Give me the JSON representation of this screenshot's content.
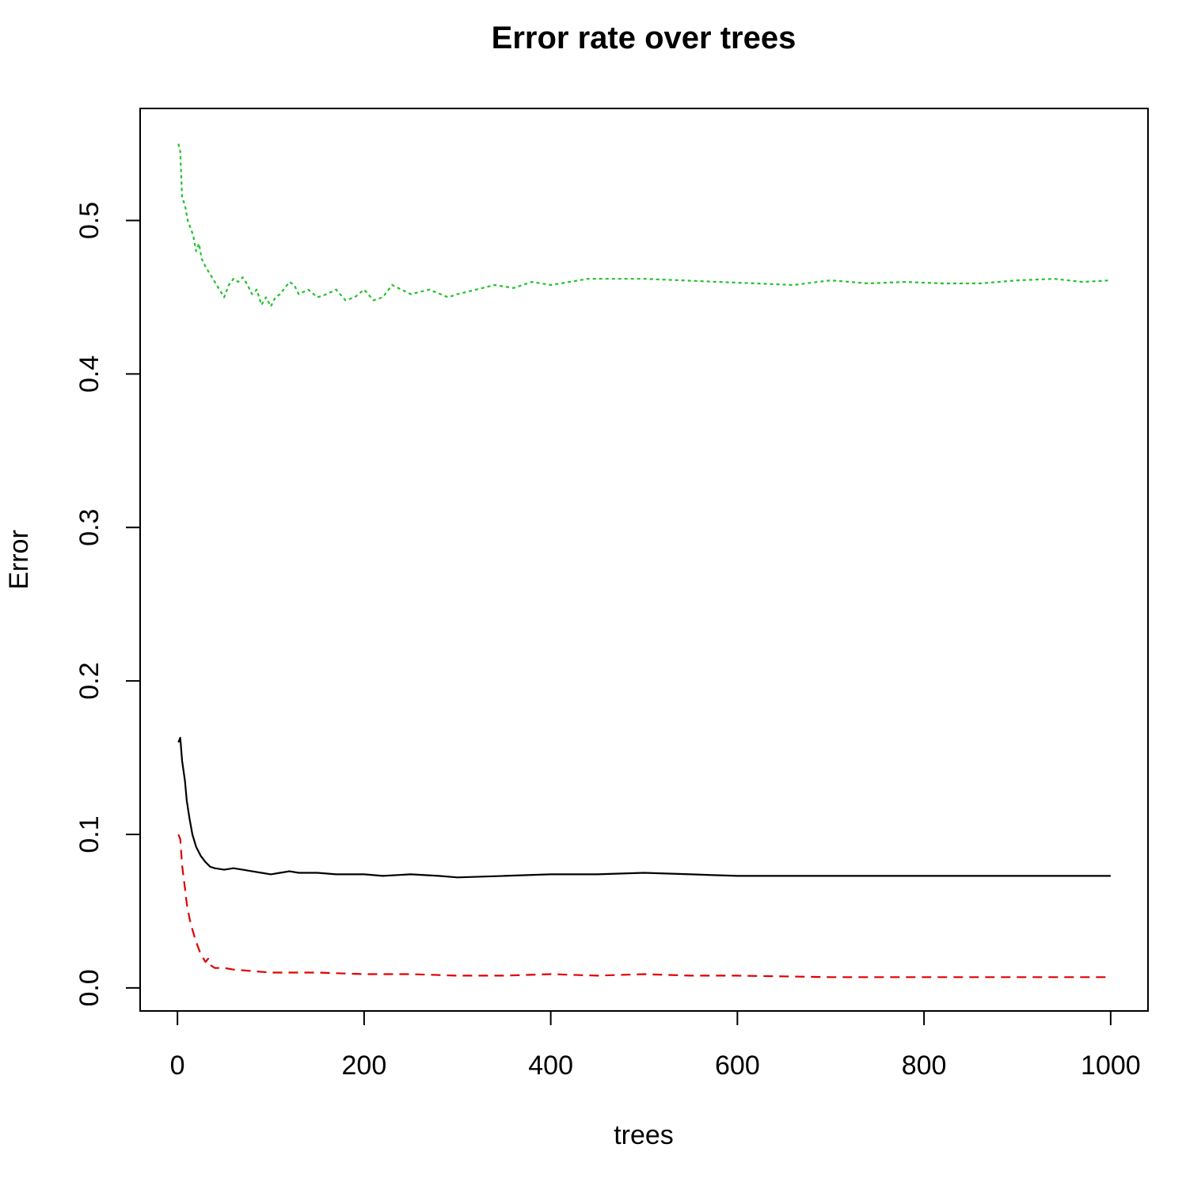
{
  "chart_data": {
    "type": "line",
    "title": "Error rate over trees",
    "xlabel": "trees",
    "ylabel": "Error",
    "xlim": [
      -40,
      1040
    ],
    "ylim": [
      -0.015,
      0.573
    ],
    "x_ticks": [
      0,
      200,
      400,
      600,
      800,
      1000
    ],
    "x_tick_labels": [
      "0",
      "200",
      "400",
      "600",
      "800",
      "1000"
    ],
    "y_ticks": [
      0.0,
      0.1,
      0.2,
      0.3,
      0.4,
      0.5
    ],
    "y_tick_labels": [
      "0.0",
      "0.1",
      "0.2",
      "0.3",
      "0.4",
      "0.5"
    ],
    "grid": false,
    "legend": "none",
    "series": [
      {
        "color": "#000000",
        "dash": "solid",
        "points": [
          [
            1,
            0.16
          ],
          [
            3,
            0.163
          ],
          [
            5,
            0.148
          ],
          [
            8,
            0.135
          ],
          [
            10,
            0.122
          ],
          [
            13,
            0.11
          ],
          [
            16,
            0.1
          ],
          [
            20,
            0.092
          ],
          [
            25,
            0.086
          ],
          [
            30,
            0.082
          ],
          [
            35,
            0.079
          ],
          [
            40,
            0.078
          ],
          [
            50,
            0.077
          ],
          [
            60,
            0.078
          ],
          [
            70,
            0.077
          ],
          [
            80,
            0.076
          ],
          [
            90,
            0.075
          ],
          [
            100,
            0.074
          ],
          [
            110,
            0.075
          ],
          [
            120,
            0.076
          ],
          [
            130,
            0.075
          ],
          [
            150,
            0.075
          ],
          [
            170,
            0.074
          ],
          [
            200,
            0.074
          ],
          [
            220,
            0.073
          ],
          [
            250,
            0.074
          ],
          [
            280,
            0.073
          ],
          [
            300,
            0.072
          ],
          [
            350,
            0.073
          ],
          [
            400,
            0.074
          ],
          [
            450,
            0.074
          ],
          [
            500,
            0.075
          ],
          [
            550,
            0.074
          ],
          [
            600,
            0.073
          ],
          [
            650,
            0.073
          ],
          [
            700,
            0.073
          ],
          [
            750,
            0.073
          ],
          [
            800,
            0.073
          ],
          [
            850,
            0.073
          ],
          [
            900,
            0.073
          ],
          [
            950,
            0.073
          ],
          [
            1000,
            0.073
          ]
        ]
      },
      {
        "color": "#df0000",
        "dash": "dashed",
        "points": [
          [
            1,
            0.1
          ],
          [
            3,
            0.097
          ],
          [
            5,
            0.08
          ],
          [
            8,
            0.065
          ],
          [
            10,
            0.055
          ],
          [
            13,
            0.045
          ],
          [
            16,
            0.038
          ],
          [
            20,
            0.03
          ],
          [
            25,
            0.022
          ],
          [
            30,
            0.017
          ],
          [
            33,
            0.019
          ],
          [
            35,
            0.015
          ],
          [
            40,
            0.013
          ],
          [
            50,
            0.013
          ],
          [
            60,
            0.012
          ],
          [
            80,
            0.011
          ],
          [
            100,
            0.01
          ],
          [
            150,
            0.01
          ],
          [
            200,
            0.009
          ],
          [
            250,
            0.009
          ],
          [
            300,
            0.008
          ],
          [
            350,
            0.008
          ],
          [
            400,
            0.009
          ],
          [
            450,
            0.008
          ],
          [
            500,
            0.009
          ],
          [
            550,
            0.008
          ],
          [
            600,
            0.008
          ],
          [
            700,
            0.007
          ],
          [
            800,
            0.007
          ],
          [
            900,
            0.007
          ],
          [
            1000,
            0.007
          ]
        ]
      },
      {
        "color": "#22c22c",
        "dash": "dotted",
        "points": [
          [
            1,
            0.55
          ],
          [
            3,
            0.545
          ],
          [
            5,
            0.515
          ],
          [
            8,
            0.51
          ],
          [
            11,
            0.5
          ],
          [
            14,
            0.495
          ],
          [
            17,
            0.49
          ],
          [
            20,
            0.48
          ],
          [
            23,
            0.485
          ],
          [
            26,
            0.475
          ],
          [
            30,
            0.47
          ],
          [
            35,
            0.465
          ],
          [
            40,
            0.46
          ],
          [
            45,
            0.455
          ],
          [
            50,
            0.45
          ],
          [
            55,
            0.458
          ],
          [
            60,
            0.462
          ],
          [
            65,
            0.46
          ],
          [
            70,
            0.463
          ],
          [
            75,
            0.458
          ],
          [
            80,
            0.452
          ],
          [
            85,
            0.455
          ],
          [
            90,
            0.445
          ],
          [
            95,
            0.45
          ],
          [
            100,
            0.444
          ],
          [
            105,
            0.45
          ],
          [
            110,
            0.452
          ],
          [
            115,
            0.456
          ],
          [
            120,
            0.46
          ],
          [
            125,
            0.458
          ],
          [
            130,
            0.452
          ],
          [
            140,
            0.455
          ],
          [
            150,
            0.45
          ],
          [
            160,
            0.452
          ],
          [
            170,
            0.455
          ],
          [
            180,
            0.448
          ],
          [
            190,
            0.45
          ],
          [
            200,
            0.455
          ],
          [
            210,
            0.448
          ],
          [
            220,
            0.45
          ],
          [
            230,
            0.458
          ],
          [
            240,
            0.455
          ],
          [
            250,
            0.452
          ],
          [
            270,
            0.455
          ],
          [
            290,
            0.45
          ],
          [
            300,
            0.452
          ],
          [
            320,
            0.455
          ],
          [
            340,
            0.458
          ],
          [
            360,
            0.456
          ],
          [
            380,
            0.46
          ],
          [
            400,
            0.458
          ],
          [
            420,
            0.46
          ],
          [
            440,
            0.462
          ],
          [
            460,
            0.462
          ],
          [
            500,
            0.462
          ],
          [
            540,
            0.461
          ],
          [
            580,
            0.46
          ],
          [
            620,
            0.459
          ],
          [
            660,
            0.458
          ],
          [
            700,
            0.461
          ],
          [
            740,
            0.459
          ],
          [
            780,
            0.46
          ],
          [
            820,
            0.459
          ],
          [
            860,
            0.459
          ],
          [
            900,
            0.461
          ],
          [
            940,
            0.462
          ],
          [
            970,
            0.46
          ],
          [
            1000,
            0.461
          ]
        ]
      }
    ]
  }
}
